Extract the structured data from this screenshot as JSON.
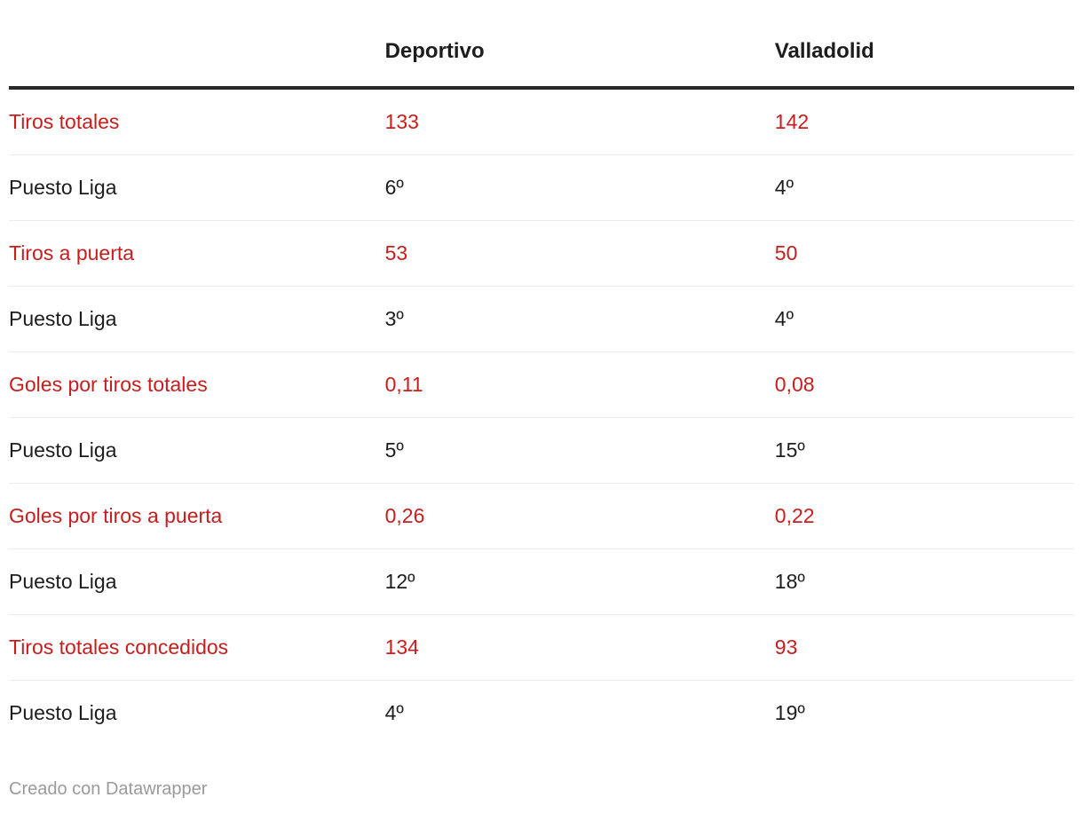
{
  "colors": {
    "accent_red": "#c71e1d",
    "text_black": "#1d1d1d",
    "header_rule": "#282828",
    "row_separator": "#ebebeb",
    "footer_gray": "#9a9a9a",
    "background": "#ffffff"
  },
  "footer": {
    "text": "Creado con Datawrapper"
  },
  "chart_data": {
    "type": "table",
    "title": "",
    "columns": [
      "",
      "Deportivo",
      "Valladolid"
    ],
    "highlight_rows": [
      0,
      2,
      4,
      6,
      8
    ],
    "rows": [
      [
        "Tiros totales",
        "133",
        "142"
      ],
      [
        "Puesto Liga",
        "6º",
        "4º"
      ],
      [
        "Tiros a puerta",
        "53",
        "50"
      ],
      [
        "Puesto Liga",
        "3º",
        "4º"
      ],
      [
        "Goles por tiros totales",
        "0,11",
        "0,08"
      ],
      [
        "Puesto Liga",
        "5º",
        "15º"
      ],
      [
        "Goles por tiros a puerta",
        "0,26",
        "0,22"
      ],
      [
        "Puesto Liga",
        "12º",
        "18º"
      ],
      [
        "Tiros totales concedidos",
        "134",
        "93"
      ],
      [
        "Puesto Liga",
        "4º",
        "19º"
      ]
    ]
  }
}
